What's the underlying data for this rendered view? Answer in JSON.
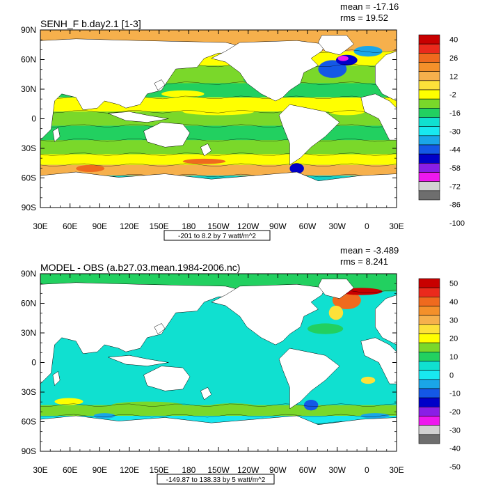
{
  "colors": {
    "ocean_default": "#12d0c8",
    "land": "#ffffff",
    "axis": "#000000",
    "contour": "#000000"
  },
  "panels": [
    {
      "title": "SENH_F b.day2.1 [1-3]",
      "mean_text": "mean = -17.16",
      "rms_text": "rms = 19.52",
      "range_caption": "-201 to 8.2 by 7 watt/m^2",
      "field_style": "absolute_flux",
      "colorbar": {
        "colors": [
          "#c80000",
          "#ea2a1c",
          "#ef6a1e",
          "#f4902a",
          "#f6b04c",
          "#fde13a",
          "#ffff00",
          "#7ad82a",
          "#22d060",
          "#10e0d0",
          "#18e8f0",
          "#1aa6e8",
          "#1458e6",
          "#0000c8",
          "#8a1ee6",
          "#ee18ee",
          "#d2d2d2",
          "#6e6e6e"
        ],
        "labels": [
          "40",
          "26",
          "12",
          "-2",
          "-16",
          "-30",
          "-44",
          "-58",
          "-72",
          "-86",
          "-100"
        ]
      }
    },
    {
      "title": "MODEL - OBS (a.b27.03.mean.1984-2006.nc)",
      "mean_text": "mean = -3.489",
      "rms_text": "rms = 8.241",
      "range_caption": "-149.87 to 138.33 by 5 watt/m^2",
      "field_style": "difference",
      "colorbar": {
        "colors": [
          "#c80000",
          "#ea2a1c",
          "#ef6a1e",
          "#f4902a",
          "#f6b04c",
          "#fde13a",
          "#ffff00",
          "#7ad82a",
          "#22d060",
          "#10e0d0",
          "#18e8f0",
          "#1aa6e8",
          "#1458e6",
          "#0000c8",
          "#8a1ee6",
          "#ee18ee",
          "#d2d2d2",
          "#6e6e6e"
        ],
        "labels": [
          "50",
          "40",
          "30",
          "20",
          "10",
          "0",
          "-10",
          "-20",
          "-30",
          "-40",
          "-50"
        ]
      }
    }
  ],
  "lon_labels": [
    "30E",
    "60E",
    "90E",
    "120E",
    "150E",
    "180",
    "150W",
    "120W",
    "90W",
    "60W",
    "30W",
    "0",
    "30E"
  ],
  "lat_labels": [
    "90N",
    "60N",
    "30N",
    "0",
    "30S",
    "60S",
    "90S"
  ]
}
